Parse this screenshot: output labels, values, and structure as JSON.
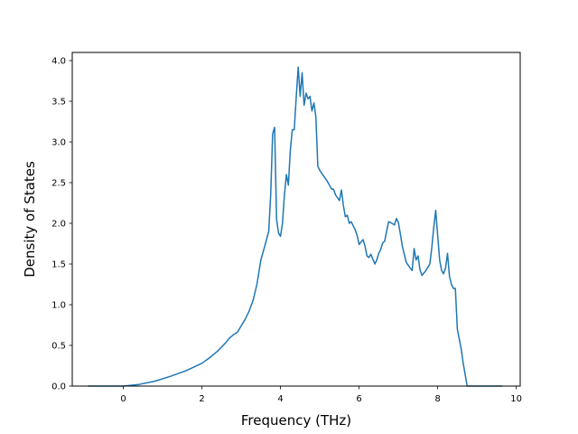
{
  "chart_data": {
    "type": "line",
    "xlabel": "Frequency (THz)",
    "ylabel": "Density of States",
    "xlim": [
      -1.3,
      10.1
    ],
    "ylim": [
      0,
      4.1
    ],
    "x_ticks": [
      0,
      2,
      4,
      6,
      8,
      10
    ],
    "x_tick_labels": [
      "0",
      "2",
      "4",
      "6",
      "8",
      "10"
    ],
    "y_ticks": [
      0.0,
      0.5,
      1.0,
      1.5,
      2.0,
      2.5,
      3.0,
      3.5,
      4.0
    ],
    "y_tick_labels": [
      "0.0",
      "0.5",
      "1.0",
      "1.5",
      "2.0",
      "2.5",
      "3.0",
      "3.5",
      "4.0"
    ],
    "grid": false,
    "line_color": "#1f77b4",
    "series": [
      {
        "x": [
          -0.9,
          0.0,
          0.4,
          0.8,
          1.2,
          1.6,
          2.0,
          2.2,
          2.4,
          2.6,
          2.7,
          2.8,
          2.9,
          3.0,
          3.1,
          3.2,
          3.3,
          3.4,
          3.5,
          3.6,
          3.7,
          3.75,
          3.8,
          3.85,
          3.9,
          3.95,
          4.0,
          4.05,
          4.1,
          4.15,
          4.2,
          4.25,
          4.3,
          4.35,
          4.4,
          4.45,
          4.5,
          4.55,
          4.6,
          4.65,
          4.7,
          4.75,
          4.8,
          4.85,
          4.9,
          4.95,
          5.0,
          5.1,
          5.2,
          5.3,
          5.35,
          5.4,
          5.5,
          5.55,
          5.6,
          5.65,
          5.7,
          5.75,
          5.8,
          5.85,
          5.9,
          5.95,
          6.0,
          6.1,
          6.15,
          6.2,
          6.25,
          6.3,
          6.4,
          6.45,
          6.5,
          6.55,
          6.6,
          6.65,
          6.7,
          6.75,
          6.8,
          6.9,
          6.95,
          7.0,
          7.05,
          7.1,
          7.2,
          7.3,
          7.35,
          7.4,
          7.45,
          7.5,
          7.55,
          7.6,
          7.7,
          7.8,
          7.85,
          7.9,
          7.95,
          8.0,
          8.05,
          8.1,
          8.15,
          8.2,
          8.25,
          8.3,
          8.35,
          8.4,
          8.45,
          8.5,
          8.6,
          8.65,
          8.75,
          9.0,
          9.65
        ],
        "y": [
          0.0,
          0.0,
          0.02,
          0.06,
          0.12,
          0.19,
          0.28,
          0.35,
          0.43,
          0.53,
          0.59,
          0.63,
          0.66,
          0.74,
          0.82,
          0.92,
          1.05,
          1.25,
          1.55,
          1.72,
          1.9,
          2.35,
          3.1,
          3.18,
          2.05,
          1.88,
          1.84,
          2.0,
          2.35,
          2.6,
          2.47,
          2.9,
          3.15,
          3.15,
          3.55,
          3.92,
          3.56,
          3.85,
          3.45,
          3.6,
          3.53,
          3.56,
          3.38,
          3.48,
          3.31,
          2.7,
          2.65,
          2.58,
          2.51,
          2.42,
          2.42,
          2.35,
          2.28,
          2.41,
          2.22,
          2.08,
          2.1,
          2.0,
          2.02,
          1.97,
          1.92,
          1.85,
          1.74,
          1.8,
          1.72,
          1.6,
          1.58,
          1.62,
          1.5,
          1.55,
          1.63,
          1.68,
          1.76,
          1.78,
          1.9,
          2.02,
          2.01,
          1.98,
          2.06,
          2.01,
          1.87,
          1.72,
          1.52,
          1.45,
          1.42,
          1.69,
          1.55,
          1.6,
          1.43,
          1.36,
          1.42,
          1.5,
          1.7,
          1.95,
          2.16,
          1.85,
          1.55,
          1.42,
          1.38,
          1.45,
          1.63,
          1.35,
          1.25,
          1.2,
          1.2,
          0.7,
          0.45,
          0.28,
          0.0,
          0.0,
          0.0
        ]
      }
    ]
  }
}
